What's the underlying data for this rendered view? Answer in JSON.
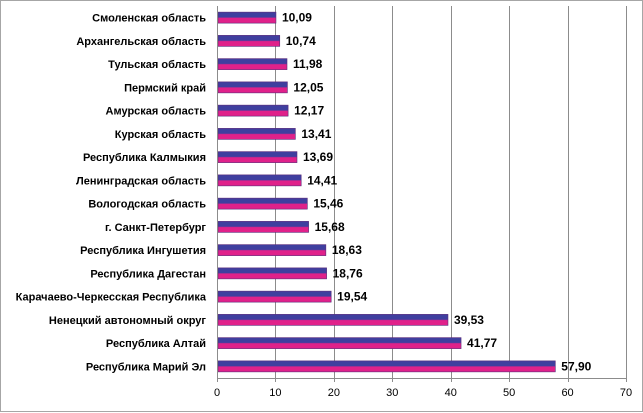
{
  "chart_data": {
    "type": "bar",
    "orientation": "horizontal",
    "categories": [
      "Смоленская  область",
      "Архангельская  область",
      "Тульская  область",
      "Пермский  край",
      "Амурская  область",
      "Курская  область",
      "Республика  Калмыкия",
      "Ленинградская  область",
      "Вологодская  область",
      "г. Санкт-Петербург",
      "Республика  Ингушетия",
      "Республика  Дагестан",
      "Карачаево-Черкесская  Республика",
      "Ненецкий  автономный  округ",
      "Республика  Алтай",
      "Республика  Марий  Эл"
    ],
    "values": [
      10.09,
      10.74,
      11.98,
      12.05,
      12.17,
      13.41,
      13.69,
      14.41,
      15.46,
      15.68,
      18.63,
      18.76,
      19.54,
      39.53,
      41.77,
      57.9
    ],
    "value_labels": [
      "10,09",
      "10,74",
      "11,98",
      "12,05",
      "12,17",
      "13,41",
      "13,69",
      "14,41",
      "15,46",
      "15,68",
      "18,63",
      "18,76",
      "19,54",
      "39,53",
      "41,77",
      "57,90"
    ],
    "xticks": [
      "0",
      "10",
      "20",
      "30",
      "40",
      "50",
      "60",
      "70"
    ],
    "xlim": [
      0,
      70
    ],
    "grid": "vertical",
    "legend": "none",
    "title": "",
    "xlabel": "",
    "ylabel": "",
    "colors": {
      "bar_top": "#3f3f9f",
      "bar_bottom": "#e0218a",
      "grid": "#8c8c8c",
      "axis": "#000000"
    }
  }
}
